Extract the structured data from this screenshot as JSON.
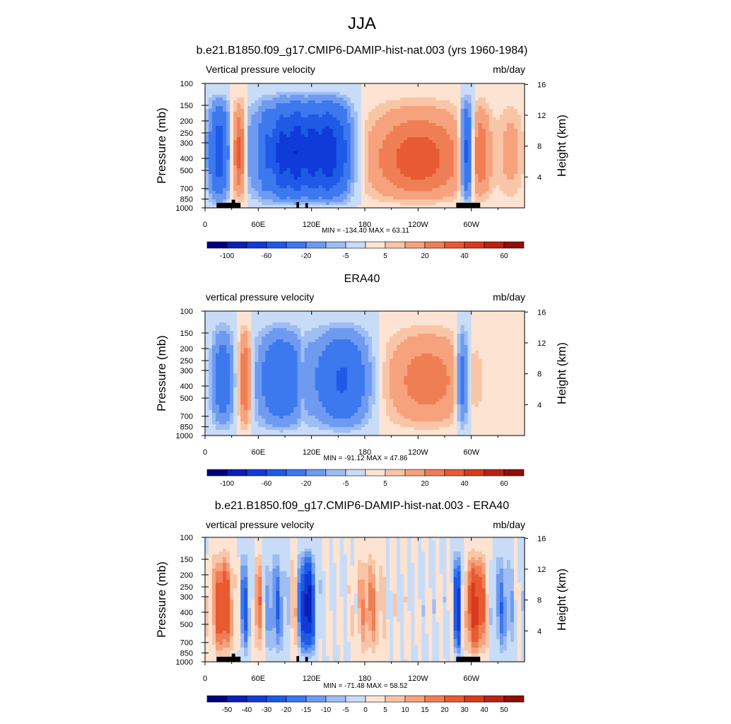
{
  "page_title": "JJA",
  "chart_data": [
    {
      "type": "heatmap",
      "title": "b.e21.B1850.f09_g17.CMIP6-DAMIP-hist-nat.003 (yrs 1960-1984)",
      "left_subtitle": "Vertical pressure velocity",
      "right_subtitle": "mb/day",
      "ylabel": "Pressure (mb)",
      "y2label": "Height (km)",
      "x_ticks": [
        "0",
        "60E",
        "120E",
        "180",
        "120W",
        "60W"
      ],
      "y_ticks": [
        "100",
        "150",
        "200",
        "250",
        "300",
        "400",
        "500",
        "700",
        "850",
        "1000"
      ],
      "y2_ticks": [
        "16",
        "12",
        "8",
        "4"
      ],
      "ylim": [
        1000,
        100
      ],
      "xlim": [
        0,
        360
      ],
      "stats": "MIN = -134.40  MAX =  63.11",
      "colorbar_labels": [
        "-100",
        "-60",
        "-20",
        "-5",
        "5",
        "20",
        "40",
        "60"
      ],
      "levels": [
        -120,
        -100,
        -80,
        -60,
        -40,
        -20,
        -10,
        -5,
        0,
        5,
        10,
        20,
        30,
        40,
        50,
        60,
        80
      ],
      "min": -134.4,
      "max": 63.11
    },
    {
      "type": "heatmap",
      "title": "ERA40",
      "left_subtitle": "vertical pressure velocity",
      "right_subtitle": "mb/day",
      "ylabel": "Pressure (mb)",
      "y2label": "Height (km)",
      "x_ticks": [
        "0",
        "60E",
        "120E",
        "180",
        "120W",
        "60W"
      ],
      "y_ticks": [
        "100",
        "150",
        "200",
        "250",
        "300",
        "400",
        "500",
        "700",
        "850",
        "1000"
      ],
      "y2_ticks": [
        "16",
        "12",
        "8",
        "4"
      ],
      "ylim": [
        1000,
        100
      ],
      "xlim": [
        0,
        360
      ],
      "stats": "MIN = -91.12  MAX =  47.86",
      "colorbar_labels": [
        "-100",
        "-60",
        "-20",
        "-5",
        "5",
        "20",
        "40",
        "60"
      ],
      "levels": [
        -120,
        -100,
        -80,
        -60,
        -40,
        -20,
        -10,
        -5,
        0,
        5,
        10,
        20,
        30,
        40,
        50,
        60,
        80
      ],
      "min": -91.12,
      "max": 47.86
    },
    {
      "type": "heatmap",
      "title": "b.e21.B1850.f09_g17.CMIP6-DAMIP-hist-nat.003 - ERA40",
      "left_subtitle": "vertical pressure velocity",
      "right_subtitle": "mb/day",
      "ylabel": "Pressure (mb)",
      "y2label": "Height (km)",
      "x_ticks": [
        "0",
        "60E",
        "120E",
        "180",
        "120W",
        "60W"
      ],
      "y_ticks": [
        "100",
        "150",
        "200",
        "250",
        "300",
        "400",
        "500",
        "700",
        "850",
        "1000"
      ],
      "y2_ticks": [
        "16",
        "12",
        "8",
        "4"
      ],
      "ylim": [
        1000,
        100
      ],
      "xlim": [
        0,
        360
      ],
      "stats": "MIN = -71.48  MAX =  58.52",
      "colorbar_labels": [
        "-50",
        "-40",
        "-30",
        "-20",
        "-15",
        "-10",
        "-5",
        "0",
        "5",
        "10",
        "15",
        "20",
        "30",
        "40",
        "50"
      ],
      "levels": [
        -60,
        -50,
        -40,
        -30,
        -20,
        -15,
        -10,
        -5,
        0,
        5,
        10,
        15,
        20,
        30,
        40,
        50,
        60
      ],
      "min": -71.48,
      "max": 58.52
    }
  ],
  "colormap": [
    "#00007f",
    "#0a1fb5",
    "#0f3bd8",
    "#1e5ae6",
    "#3c78ee",
    "#6e9bf0",
    "#9ebdf2",
    "#c8dcf7",
    "#fde3d2",
    "#f9c5a7",
    "#f5a27d",
    "#f07e55",
    "#e85a32",
    "#d83a1c",
    "#b82312",
    "#8f0f08"
  ]
}
